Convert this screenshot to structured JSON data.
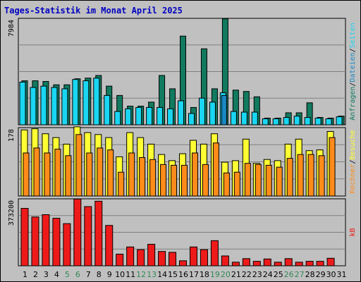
{
  "title": "Tages-Statistik im Monat April 2025",
  "colors": {
    "background": "#c0c0c0",
    "title": "#0000c0",
    "anfragen": "#117a5f",
    "dateien": "#1ad6f2",
    "seiten": "#1a88c4",
    "besuche": "#ffff33",
    "rechner": "#ff8c1a",
    "kb": "#ee1a1a",
    "weekend_label": "#338855",
    "weekday_label": "#000000"
  },
  "chart_data": [
    {
      "type": "bar",
      "panel": "top",
      "ymax_label": "7984",
      "ylim": [
        0,
        7984
      ],
      "categories": [
        "1",
        "2",
        "3",
        "4",
        "5",
        "6",
        "7",
        "8",
        "9",
        "10",
        "11",
        "12",
        "13",
        "14",
        "15",
        "16",
        "17",
        "18",
        "19",
        "20",
        "21",
        "22",
        "23",
        "24",
        "25",
        "26",
        "27",
        "28",
        "29",
        "30",
        "31"
      ],
      "weekend_days": [
        "5",
        "6",
        "12",
        "13",
        "19",
        "20",
        "26",
        "27"
      ],
      "right_axis": [
        "Anfragen",
        "/",
        "Dateien",
        "/",
        "Seiten"
      ],
      "series": [
        {
          "name": "Anfragen",
          "values": [
            3300,
            3300,
            3250,
            3000,
            3000,
            3450,
            3500,
            3700,
            2900,
            2200,
            1400,
            1400,
            1700,
            3700,
            2700,
            6650,
            1300,
            5700,
            2700,
            7950,
            2600,
            2500,
            2100,
            500,
            500,
            900,
            900,
            1650,
            550,
            500,
            650
          ]
        },
        {
          "name": "Dateien",
          "values": [
            3200,
            2800,
            2900,
            2800,
            2700,
            3400,
            3300,
            3500,
            2200,
            1000,
            1200,
            1300,
            1300,
            1300,
            1200,
            1800,
            850,
            2000,
            1700,
            2400,
            1000,
            950,
            950,
            450,
            450,
            550,
            650,
            550,
            500,
            450,
            600
          ]
        },
        {
          "name": "Seiten",
          "values": [
            0,
            0,
            0,
            0,
            0,
            0,
            0,
            0,
            0,
            0,
            0,
            0,
            0,
            0,
            0,
            0,
            0,
            0,
            0,
            2200,
            0,
            0,
            0,
            0,
            0,
            0,
            0,
            0,
            0,
            0,
            0
          ]
        }
      ]
    },
    {
      "type": "bar",
      "panel": "middle",
      "ymax_label": "178",
      "ylim": [
        0,
        178
      ],
      "categories": [
        "1",
        "2",
        "3",
        "4",
        "5",
        "6",
        "7",
        "8",
        "9",
        "10",
        "11",
        "12",
        "13",
        "14",
        "15",
        "16",
        "17",
        "18",
        "19",
        "20",
        "21",
        "22",
        "23",
        "24",
        "25",
        "26",
        "27",
        "28",
        "29",
        "30",
        "31"
      ],
      "right_axis": [
        "Rechner",
        "/",
        "Besuche"
      ],
      "series": [
        {
          "name": "Besuche",
          "values": [
            172,
            175,
            162,
            152,
            135,
            180,
            165,
            160,
            152,
            102,
            165,
            152,
            135,
            108,
            92,
            110,
            145,
            135,
            162,
            88,
            92,
            148,
            85,
            95,
            92,
            135,
            148,
            118,
            120,
            168,
            0
          ]
        },
        {
          "name": "Rechner",
          "values": [
            112,
            125,
            112,
            122,
            105,
            160,
            112,
            125,
            120,
            62,
            112,
            100,
            95,
            82,
            80,
            80,
            112,
            82,
            138,
            60,
            62,
            85,
            82,
            80,
            75,
            98,
            108,
            108,
            105,
            152,
            0
          ]
        }
      ]
    },
    {
      "type": "bar",
      "panel": "bottom",
      "ymax_label": "373200",
      "ylim": [
        0,
        373200
      ],
      "categories": [
        "1",
        "2",
        "3",
        "4",
        "5",
        "6",
        "7",
        "8",
        "9",
        "10",
        "11",
        "12",
        "13",
        "14",
        "15",
        "16",
        "17",
        "18",
        "19",
        "20",
        "21",
        "22",
        "23",
        "24",
        "25",
        "26",
        "27",
        "28",
        "29",
        "30",
        "31"
      ],
      "right_axis": [
        "kB"
      ],
      "series": [
        {
          "name": "kB",
          "values": [
            320000,
            272000,
            285000,
            265000,
            235000,
            372000,
            330000,
            360000,
            225000,
            65000,
            105000,
            90000,
            120000,
            80000,
            75000,
            28000,
            105000,
            90000,
            140000,
            55000,
            20000,
            40000,
            25000,
            38000,
            20000,
            40000,
            20000,
            25000,
            25000,
            42000,
            0
          ]
        }
      ]
    }
  ]
}
